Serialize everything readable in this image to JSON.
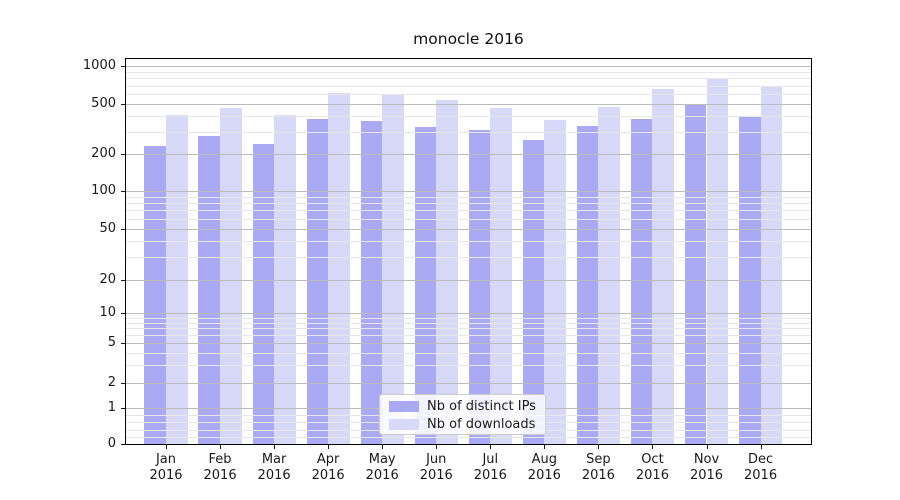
{
  "figure": {
    "title": "monocle 2016"
  },
  "chart_data": {
    "type": "bar",
    "title": "monocle 2016",
    "categories": [
      "Jan",
      "Feb",
      "Mar",
      "Apr",
      "May",
      "Jun",
      "Jul",
      "Aug",
      "Sep",
      "Oct",
      "Nov",
      "Dec"
    ],
    "category_year": "2016",
    "series": [
      {
        "name": "Nb of distinct IPs",
        "color": "#a9a9f4",
        "values": [
          233,
          280,
          240,
          383,
          367,
          327,
          313,
          259,
          333,
          382,
          500,
          400
        ]
      },
      {
        "name": "Nb of downloads",
        "color": "#d8d8f8",
        "values": [
          408,
          465,
          410,
          610,
          605,
          537,
          465,
          377,
          474,
          665,
          806,
          685
        ]
      }
    ],
    "xlabel": "",
    "ylabel": "",
    "yscale": "symlog",
    "ylim": [
      0,
      1150
    ],
    "y_major_ticks": [
      1000,
      500,
      200,
      100,
      50,
      20,
      10,
      5,
      2,
      1,
      0
    ],
    "y_minor_ticks": [
      0.2,
      0.4,
      0.6,
      0.8,
      3,
      4,
      6,
      7,
      8,
      9,
      30,
      40,
      60,
      70,
      80,
      90,
      300,
      400,
      600,
      700,
      800,
      900
    ],
    "grid": true,
    "grid_on_top": true,
    "legend_position": "lower center",
    "colors": {
      "grid_major": "#bcbcbc",
      "grid_minor": "#e7e7e7",
      "spine": "#000000",
      "text": "#1a1a1a",
      "legend_border": "#cccccc"
    }
  }
}
